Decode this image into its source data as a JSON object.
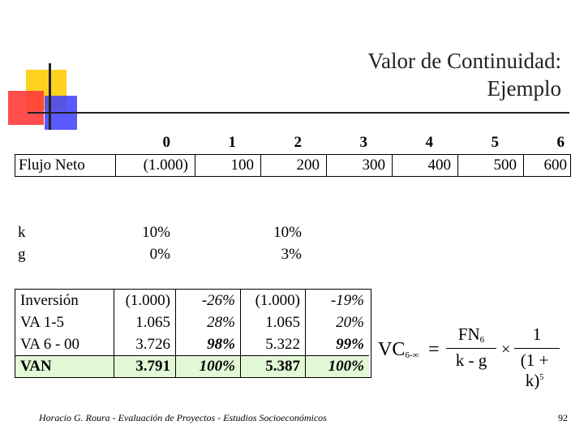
{
  "title": {
    "line1": "Valor de Continuidad:",
    "line2": "Ejemplo"
  },
  "years": [
    "0",
    "1",
    "2",
    "3",
    "4",
    "5",
    "6"
  ],
  "flujo": {
    "label": "Flujo Neto",
    "values": [
      "(1.000)",
      "100",
      "200",
      "300",
      "400",
      "500",
      "600"
    ]
  },
  "params": {
    "k": {
      "label": "k",
      "a": "10%",
      "b": "10%"
    },
    "g": {
      "label": "g",
      "a": "0%",
      "b": "3%"
    }
  },
  "van_table": {
    "labels": [
      "Inversión",
      "VA 1-5",
      "VA 6 - 00",
      "VAN"
    ],
    "scenario_a": {
      "values": [
        "(1.000)",
        "1.065",
        "3.726",
        "3.791"
      ],
      "pcts": [
        "-26%",
        "28%",
        "98%",
        "100%"
      ]
    },
    "scenario_b": {
      "values": [
        "(1.000)",
        "1.065",
        "5.322",
        "5.387"
      ],
      "pcts": [
        "-19%",
        "20%",
        "99%",
        "100%"
      ]
    }
  },
  "formula": {
    "lhs": "VC",
    "lhs_sub": "6-∞",
    "eq": "=",
    "num": "FN",
    "num_sub": "6",
    "den": "k - g",
    "times": "×",
    "num2": "1",
    "den2": "(1 + k)",
    "den2_exp": "5"
  },
  "footer": "Horacio G. Roura - Evaluación de Proyectos - Estudios Socioeconómicos",
  "page_number": "92",
  "colors": {
    "yellow": "#ffd21f",
    "red": "#ff3b3b",
    "blue": "#3d3dff",
    "highlight": "#e2f8d6"
  }
}
